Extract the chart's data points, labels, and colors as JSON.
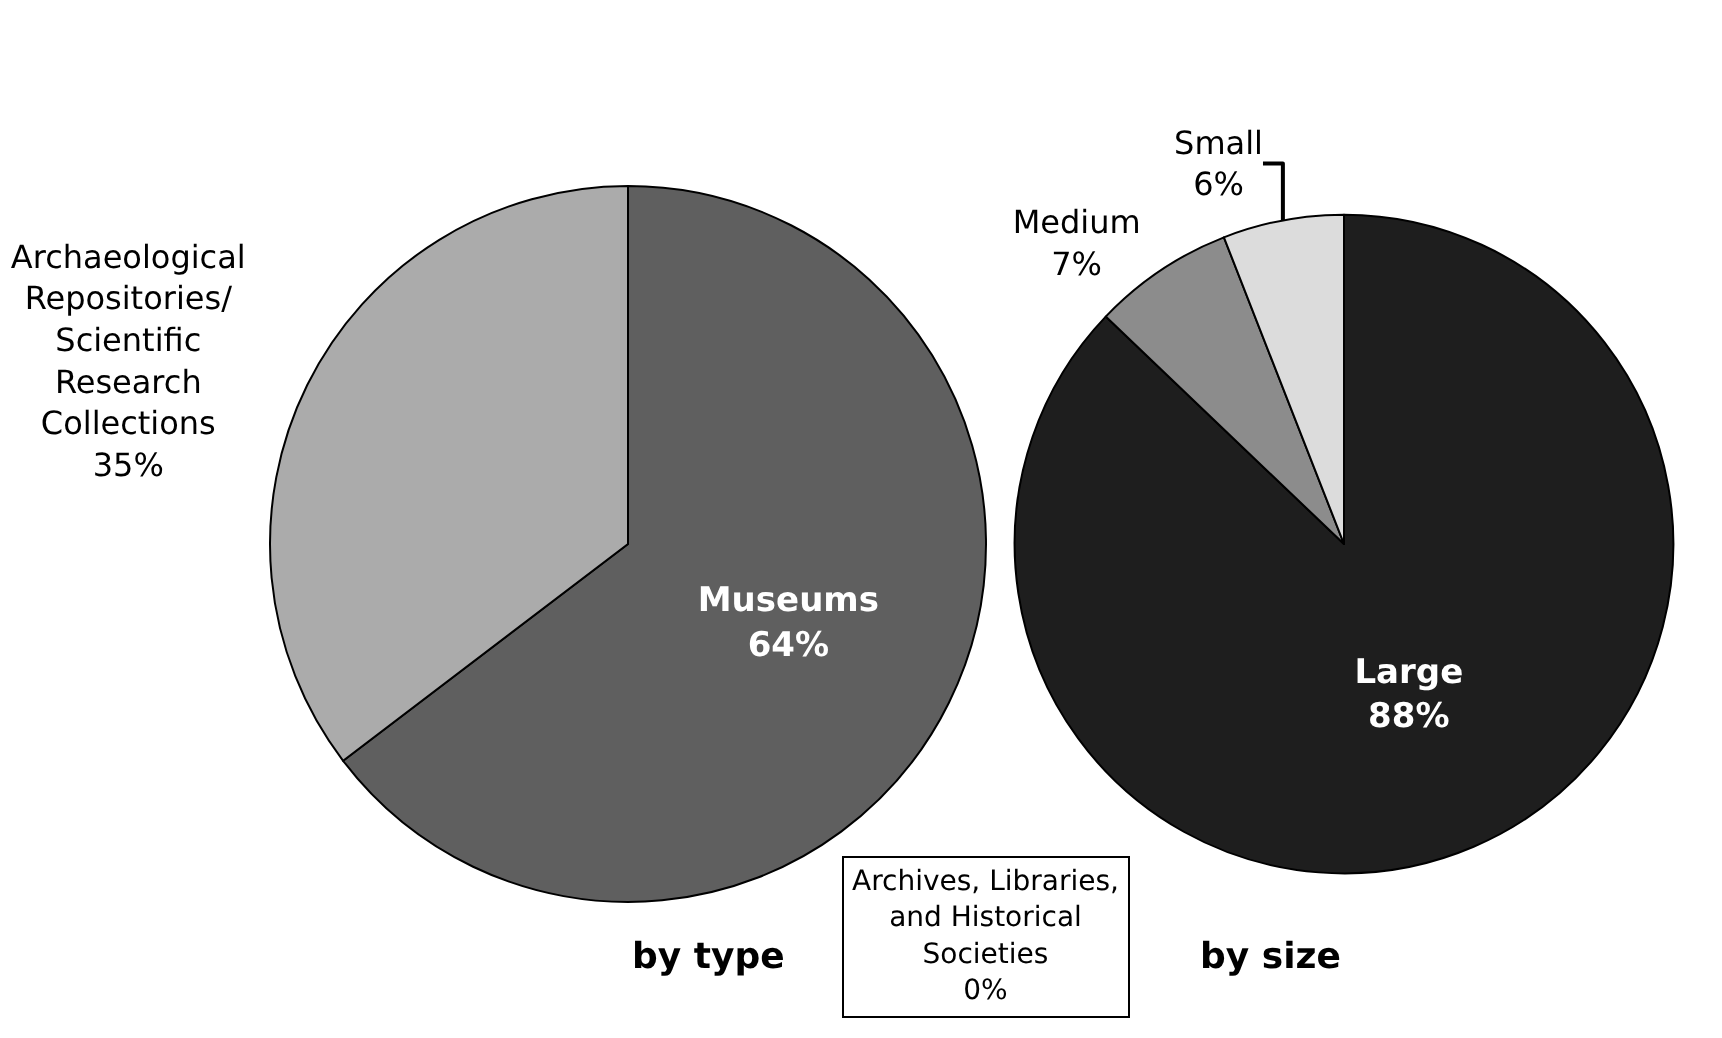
{
  "chart_data": [
    {
      "type": "pie",
      "title": "by type",
      "categories": [
        "Museums",
        "Archives, Libraries, and Historical Societies",
        "Archaeological Repositories/ Scientific Research Collections"
      ],
      "values": [
        64,
        0,
        35
      ],
      "value_labels": [
        "64%",
        "0%",
        "35%"
      ],
      "colors": [
        "#5f5f5f",
        "#ffffff",
        "#ababab"
      ]
    },
    {
      "type": "pie",
      "title": "by size",
      "categories": [
        "Large",
        "Medium",
        "Small"
      ],
      "values": [
        88,
        7,
        6
      ],
      "value_labels": [
        "88%",
        "7%",
        "6%"
      ],
      "colors": [
        "#1e1e1e",
        "#8c8c8c",
        "#dcdcdc"
      ]
    }
  ]
}
